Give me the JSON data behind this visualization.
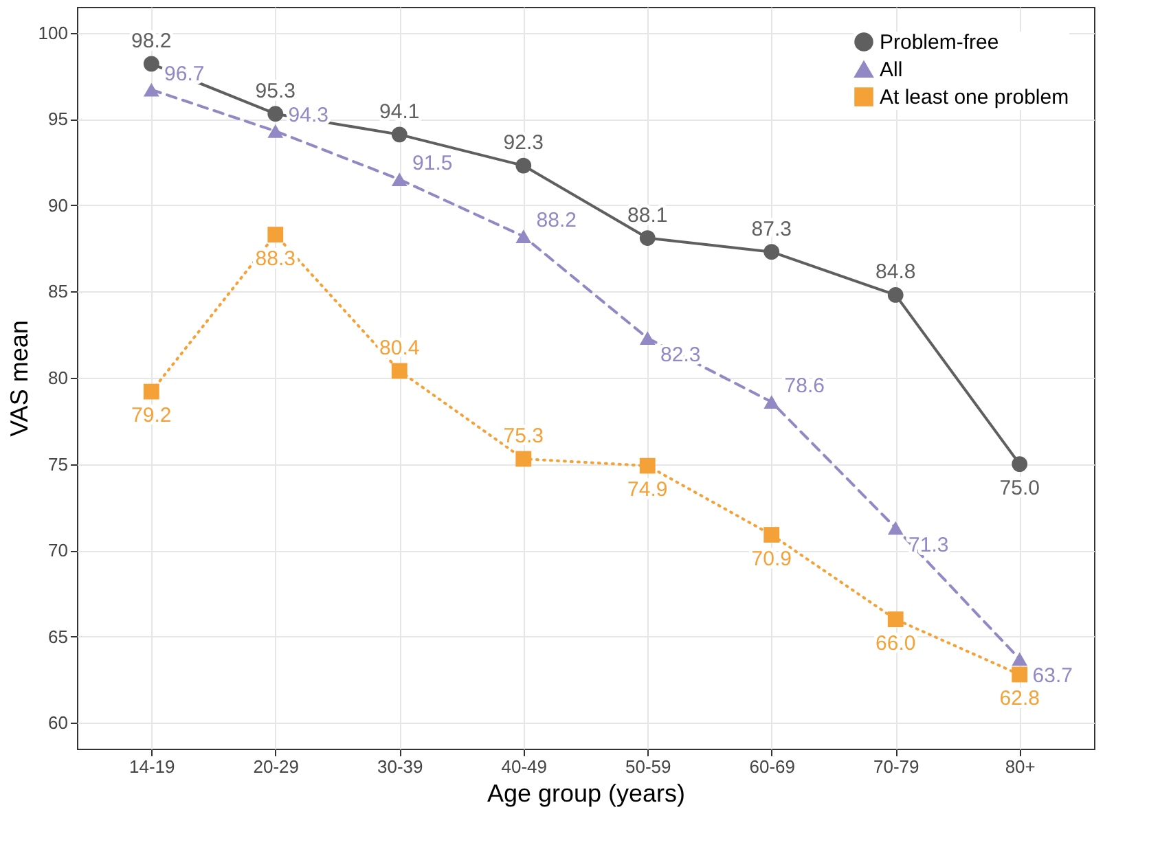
{
  "chart_data": {
    "type": "line",
    "xlabel": "Age group (years)",
    "ylabel": "VAS mean",
    "categories": [
      "14-19",
      "20-29",
      "30-39",
      "40-49",
      "50-59",
      "60-69",
      "70-79",
      "80+"
    ],
    "series": [
      {
        "name": "Problem-free",
        "color": "#5f5f5f",
        "marker": "circle",
        "line_style": "solid",
        "values": [
          98.2,
          95.3,
          94.1,
          92.3,
          88.1,
          87.3,
          84.8,
          75.0
        ],
        "value_labels": [
          "98.2",
          "95.3",
          "94.1",
          "92.3",
          "88.1",
          "87.3",
          "84.8",
          "75.0"
        ]
      },
      {
        "name": "All",
        "color": "#9188c4",
        "marker": "triangle",
        "line_style": "dashed",
        "values": [
          96.7,
          94.3,
          91.5,
          88.2,
          82.3,
          78.6,
          71.3,
          63.7
        ],
        "value_labels": [
          "96.7",
          "94.3",
          "91.5",
          "88.2",
          "82.3",
          "78.6",
          "71.3",
          "63.7"
        ]
      },
      {
        "name": "At least one problem",
        "color": "#f4a137",
        "marker": "square",
        "line_style": "dotted",
        "values": [
          79.2,
          88.3,
          80.4,
          75.3,
          74.9,
          70.9,
          66.0,
          62.8
        ],
        "value_labels": [
          "79.2",
          "88.3",
          "80.4",
          "75.3",
          "74.9",
          "70.9",
          "66.0",
          "62.8"
        ]
      }
    ],
    "ylim": [
      58.5,
      101.5
    ],
    "yticks": [
      60,
      65,
      70,
      75,
      80,
      85,
      90,
      95,
      100
    ],
    "grid": true,
    "legend": "top right"
  }
}
